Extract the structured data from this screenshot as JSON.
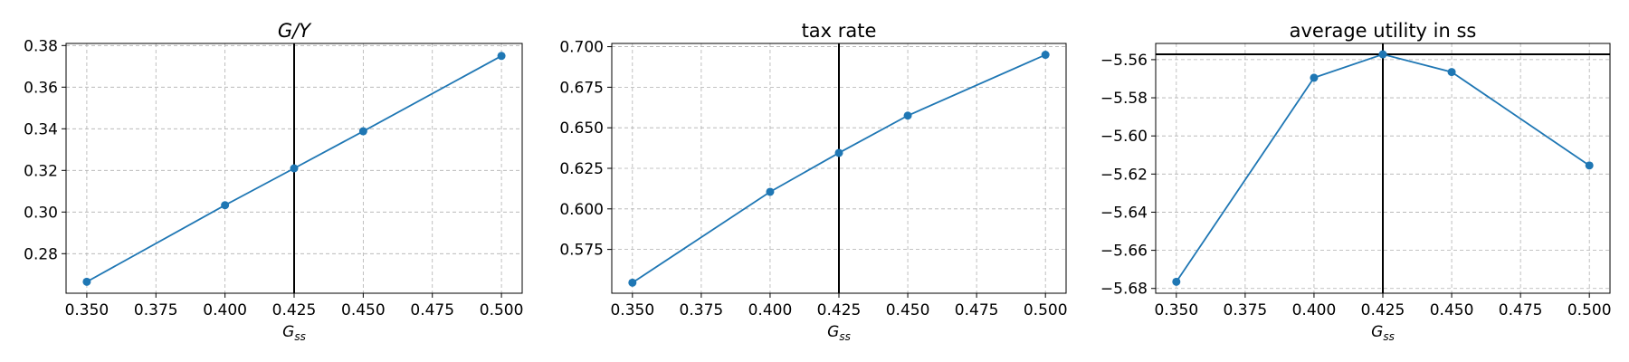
{
  "chart_data": [
    {
      "type": "line",
      "title": "G/Y",
      "title_italic": true,
      "xlabel": "G_ss",
      "ylabel": "",
      "x": [
        0.35,
        0.4,
        0.425,
        0.45,
        0.5
      ],
      "series": [
        {
          "values": [
            0.2665,
            0.3033,
            0.321,
            0.3388,
            0.375
          ],
          "color": "#1f77b4"
        }
      ],
      "xlim": [
        0.3425,
        0.5075
      ],
      "ylim": [
        0.261,
        0.381
      ],
      "xticks": [
        0.35,
        0.375,
        0.4,
        0.425,
        0.45,
        0.475,
        0.5
      ],
      "xtick_labels": [
        "0.350",
        "0.375",
        "0.400",
        "0.425",
        "0.450",
        "0.475",
        "0.500"
      ],
      "yticks": [
        0.28,
        0.3,
        0.32,
        0.34,
        0.36,
        0.38
      ],
      "ytick_labels": [
        "0.28",
        "0.30",
        "0.32",
        "0.34",
        "0.36",
        "0.38"
      ],
      "vline": 0.425,
      "hline": null,
      "grid": true
    },
    {
      "type": "line",
      "title": "tax rate",
      "title_italic": false,
      "xlabel": "G_ss",
      "ylabel": "",
      "x": [
        0.35,
        0.4,
        0.425,
        0.45,
        0.5
      ],
      "series": [
        {
          "values": [
            0.5545,
            0.6105,
            0.6345,
            0.6575,
            0.695
          ],
          "color": "#1f77b4"
        }
      ],
      "xlim": [
        0.3425,
        0.5075
      ],
      "ylim": [
        0.548,
        0.702
      ],
      "xticks": [
        0.35,
        0.375,
        0.4,
        0.425,
        0.45,
        0.475,
        0.5
      ],
      "xtick_labels": [
        "0.350",
        "0.375",
        "0.400",
        "0.425",
        "0.450",
        "0.475",
        "0.500"
      ],
      "yticks": [
        0.575,
        0.6,
        0.625,
        0.65,
        0.675,
        0.7
      ],
      "ytick_labels": [
        "0.575",
        "0.600",
        "0.625",
        "0.650",
        "0.675",
        "0.700"
      ],
      "vline": 0.425,
      "hline": null,
      "grid": true
    },
    {
      "type": "line",
      "title": "average utility in ss",
      "title_italic": false,
      "xlabel": "G_ss",
      "ylabel": "",
      "x": [
        0.35,
        0.4,
        0.425,
        0.45,
        0.5
      ],
      "series": [
        {
          "values": [
            -5.6765,
            -5.5695,
            -5.5572,
            -5.5665,
            -5.6155
          ],
          "color": "#1f77b4"
        }
      ],
      "xlim": [
        0.3425,
        0.5075
      ],
      "ylim": [
        -5.6825,
        -5.5515
      ],
      "xticks": [
        0.35,
        0.375,
        0.4,
        0.425,
        0.45,
        0.475,
        0.5
      ],
      "xtick_labels": [
        "0.350",
        "0.375",
        "0.400",
        "0.425",
        "0.450",
        "0.475",
        "0.500"
      ],
      "yticks": [
        -5.68,
        -5.66,
        -5.64,
        -5.62,
        -5.6,
        -5.58,
        -5.56
      ],
      "ytick_labels": [
        "−5.68",
        "−5.66",
        "−5.64",
        "−5.62",
        "−5.60",
        "−5.58",
        "−5.56"
      ],
      "vline": 0.425,
      "hline": -5.5572,
      "grid": true
    }
  ]
}
